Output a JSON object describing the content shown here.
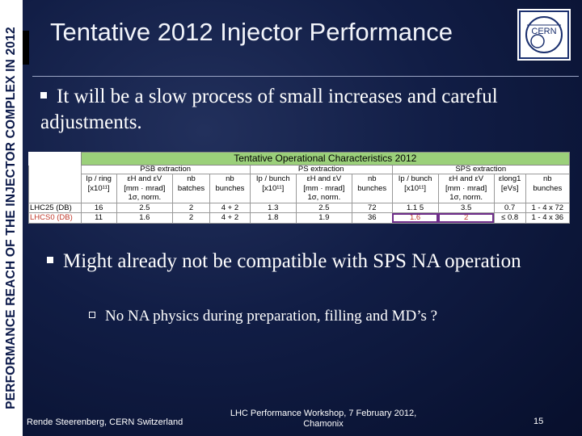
{
  "sidebar": {
    "text": "PERFORMANCE REACH OF THE INJECTOR COMPLEX IN 2012"
  },
  "title": "Tentative 2012 Injector Performance",
  "logo": {
    "text": "CERN",
    "icon": "cern-logo"
  },
  "bullets": [
    "It will be a slow process of small increases and careful adjustments.",
    "Might already not be compatible with SPS NA operation"
  ],
  "sub_bullet": "No NA physics during preparation, filling and MD’s ?",
  "table": {
    "title": "Tentative Operational Characteristics 2012",
    "groups": [
      "PSB extraction",
      "PS extraction",
      "SPS extraction"
    ],
    "headers": [
      [
        "Ip / ring",
        "[x10¹¹]"
      ],
      [
        "εH and εV",
        "[mm · mrad]",
        "1σ, norm."
      ],
      [
        "nb",
        "batches"
      ],
      [
        "nb",
        "bunches"
      ],
      [
        "Ip / bunch",
        "[x10¹¹]"
      ],
      [
        "εH and εV",
        "[mm · mrad]",
        "1σ, norm."
      ],
      [
        "nb",
        "bunches"
      ],
      [
        "Ip / bunch",
        "[x10¹¹]"
      ],
      [
        "εH and εV",
        "[mm · mrad]",
        "1σ, norm."
      ],
      [
        "εlong1",
        "[eVs]"
      ],
      [
        "nb",
        "bunches"
      ]
    ],
    "rows": [
      {
        "label": "LHC25 (DB)",
        "cells": [
          "16",
          "2.5",
          "2",
          "4 + 2",
          "1.3",
          "2.5",
          "72",
          "1.1 5",
          "3.5",
          "0.7",
          "1 - 4 x 72"
        ]
      },
      {
        "label": "LHCS0 (DB)",
        "cells": [
          "11",
          "1.6",
          "2",
          "4 + 2",
          "1.8",
          "1.9",
          "36",
          "1.6",
          "2",
          "≤ 0.8",
          "1 - 4 x 36"
        ]
      }
    ]
  },
  "footer": {
    "left": "Rende Steerenberg, CERN Switzerland",
    "center_line1": "LHC Performance Workshop, 7 February 2012,",
    "center_line2": "Chamonix",
    "page": "15"
  },
  "colors": {
    "background": "#111d45",
    "table_title": "#9bd07a",
    "highlight_box": "#6e2d8a",
    "highlight_text": "#c0392b"
  }
}
